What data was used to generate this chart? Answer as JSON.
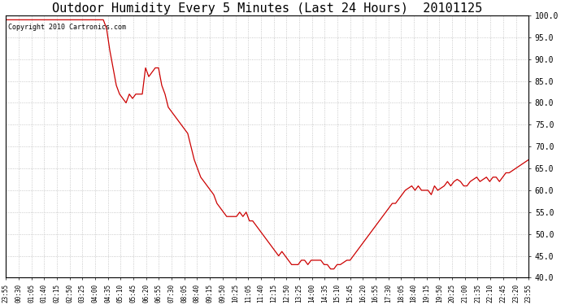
{
  "title": "Outdoor Humidity Every 5 Minutes (Last 24 Hours)  20101125",
  "copyright": "Copyright 2010 Cartronics.com",
  "ylim": [
    40.0,
    100.0
  ],
  "yticks": [
    40.0,
    45.0,
    50.0,
    55.0,
    60.0,
    65.0,
    70.0,
    75.0,
    80.0,
    85.0,
    90.0,
    95.0,
    100.0
  ],
  "line_color": "#cc0000",
  "bg_color": "#ffffff",
  "grid_color": "#bbbbbb",
  "title_fontsize": 11,
  "x_labels": [
    "23:55",
    "00:30",
    "01:05",
    "01:40",
    "02:15",
    "02:50",
    "03:25",
    "04:00",
    "04:35",
    "05:10",
    "05:45",
    "06:20",
    "06:55",
    "07:30",
    "08:05",
    "08:40",
    "09:15",
    "09:50",
    "10:25",
    "11:05",
    "11:40",
    "12:15",
    "12:50",
    "13:25",
    "14:00",
    "14:35",
    "15:10",
    "15:45",
    "16:20",
    "16:55",
    "17:30",
    "18:05",
    "18:40",
    "19:15",
    "19:50",
    "20:25",
    "21:00",
    "21:35",
    "22:10",
    "22:45",
    "23:20",
    "23:55"
  ],
  "data_y": [
    99.0,
    99.0,
    99.0,
    99.0,
    99.0,
    99.0,
    99.0,
    99.0,
    99.0,
    99.0,
    99.0,
    99.0,
    99.0,
    99.0,
    99.0,
    99.0,
    99.0,
    99.0,
    99.0,
    99.0,
    99.0,
    99.0,
    99.0,
    99.0,
    99.0,
    99.0,
    99.0,
    99.0,
    99.0,
    99.0,
    99.0,
    97.0,
    92.0,
    88.0,
    84.0,
    82.0,
    81.0,
    80.0,
    82.0,
    81.0,
    82.0,
    82.0,
    82.0,
    88.0,
    86.0,
    87.0,
    88.0,
    88.0,
    84.0,
    82.0,
    79.0,
    78.0,
    77.0,
    76.0,
    75.0,
    74.0,
    73.0,
    70.0,
    67.0,
    65.0,
    63.0,
    62.0,
    61.0,
    60.0,
    59.0,
    57.0,
    56.0,
    55.0,
    54.0,
    54.0,
    54.0,
    54.0,
    55.0,
    54.0,
    55.0,
    53.0,
    53.0,
    52.0,
    51.0,
    50.0,
    49.0,
    48.0,
    47.0,
    46.0,
    45.0,
    46.0,
    45.0,
    44.0,
    43.0,
    43.0,
    43.0,
    44.0,
    44.0,
    43.0,
    44.0,
    44.0,
    44.0,
    44.0,
    43.0,
    43.0,
    42.0,
    42.0,
    43.0,
    43.0,
    43.5,
    44.0,
    44.0,
    45.0,
    46.0,
    47.0,
    48.0,
    49.0,
    50.0,
    51.0,
    52.0,
    53.0,
    54.0,
    55.0,
    56.0,
    57.0,
    57.0,
    58.0,
    59.0,
    60.0,
    60.5,
    61.0,
    60.0,
    61.0,
    60.0,
    60.0,
    60.0,
    59.0,
    61.0,
    60.0,
    60.5,
    61.0,
    62.0,
    61.0,
    62.0,
    62.5,
    62.0,
    61.0,
    61.0,
    62.0,
    62.5,
    63.0,
    62.0,
    62.5,
    63.0,
    62.0,
    63.0,
    63.0,
    62.0,
    63.0,
    64.0,
    64.0,
    64.5,
    65.0,
    65.5,
    66.0,
    66.5,
    67.0
  ]
}
